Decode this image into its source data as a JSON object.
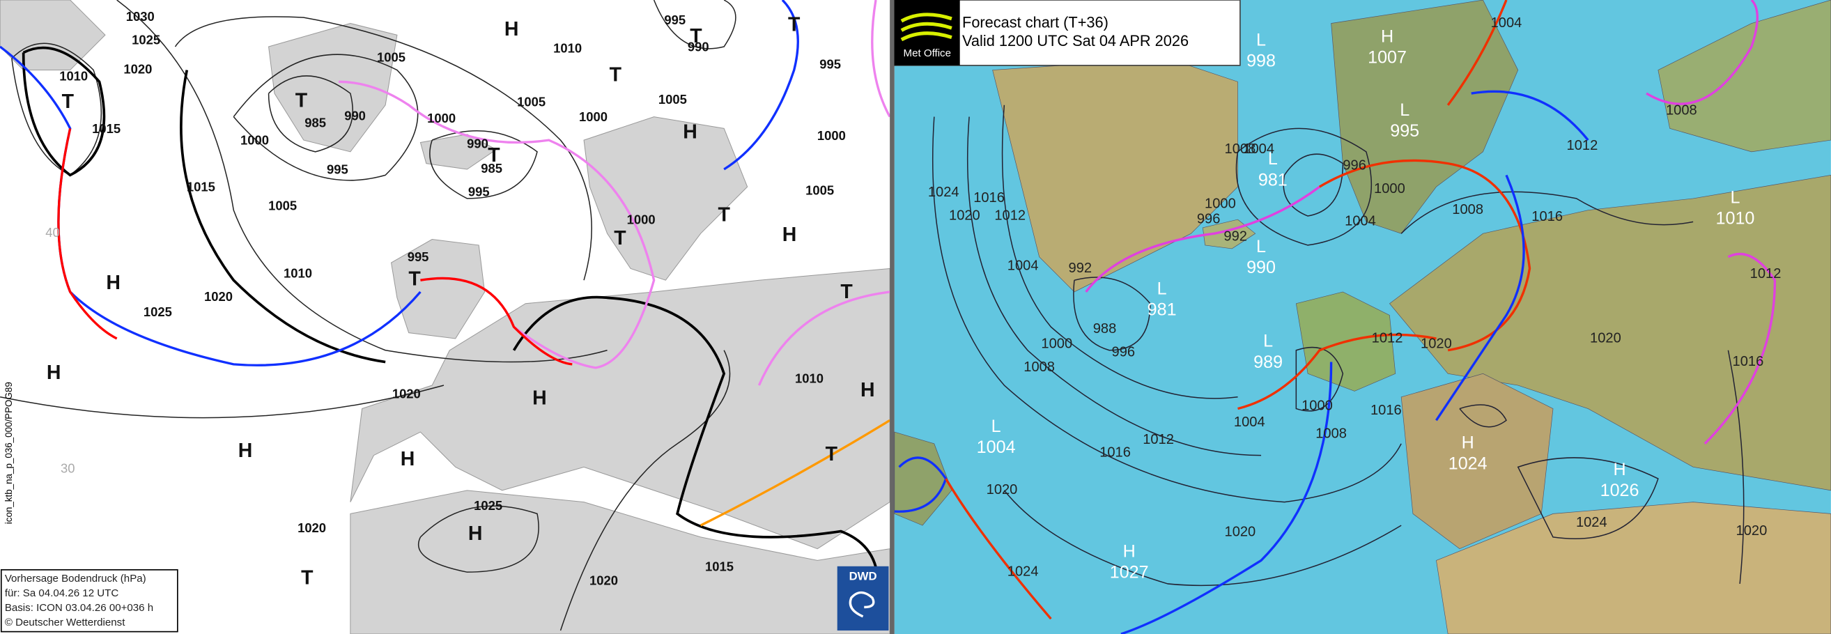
{
  "left_panel": {
    "labels": [
      "1030",
      "1025",
      "1020",
      "1010",
      "1015",
      "T",
      "H",
      "1010",
      "T",
      "995",
      "T",
      "990",
      "995",
      "T",
      "1005",
      "T",
      "985",
      "990",
      "1000",
      "1005",
      "1000",
      "1005",
      "H",
      "1000",
      "1000",
      "995",
      "990",
      "T",
      "985",
      "995",
      "1015",
      "1005",
      "1005",
      "T",
      "H",
      "1000",
      "T",
      "995",
      "T",
      "1010",
      "H",
      "1025",
      "1020",
      "T",
      "H",
      "1020",
      "H",
      "1010",
      "H",
      "H",
      "H",
      "T",
      "1025",
      "H",
      "1020",
      "T",
      "1015",
      "1020",
      "40",
      "30"
    ],
    "info": [
      "Vorhersage Bodendruck (hPa)",
      "für:  Sa  04.04.26  12 UTC",
      "Basis: ICON  03.04.26 00+036 h",
      "© Deutscher Wetterdienst"
    ],
    "side_label": "icon_ktb_na_p_036_000/PPOG89",
    "logo": "DWD"
  },
  "right_panel": {
    "header": {
      "line1": "Forecast chart (T+36)",
      "line2": "Valid 1200 UTC Sat 04 APR 2026"
    },
    "logo": "Met Office",
    "centres": [
      {
        "type": "L",
        "value": "998"
      },
      {
        "type": "H",
        "value": "1007"
      },
      {
        "type": "L",
        "value": "995"
      },
      {
        "type": "L",
        "value": "981"
      },
      {
        "type": "L",
        "value": "990"
      },
      {
        "type": "L",
        "value": "981"
      },
      {
        "type": "L",
        "value": "989"
      },
      {
        "type": "L",
        "value": "1004"
      },
      {
        "type": "H",
        "value": "1024"
      },
      {
        "type": "H",
        "value": "1026"
      },
      {
        "type": "H",
        "value": "1027"
      },
      {
        "type": "L",
        "value": "1010"
      }
    ],
    "isobar_labels": [
      "1024",
      "1020",
      "1016",
      "1012",
      "1004",
      "992",
      "988",
      "996",
      "1000",
      "1008",
      "1012",
      "1016",
      "1004",
      "1000",
      "1008",
      "1016",
      "1012",
      "1020",
      "1008",
      "1004",
      "996",
      "1000",
      "1004",
      "1008",
      "1016",
      "1012",
      "1008",
      "1000",
      "996",
      "992",
      "1020",
      "1024",
      "1020",
      "1024",
      "1020",
      "1020",
      "1016",
      "1012",
      "1004"
    ]
  }
}
